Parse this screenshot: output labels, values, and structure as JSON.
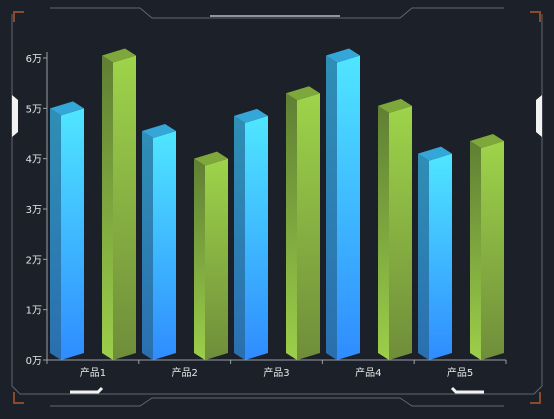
{
  "colors": {
    "background": "#1c2028",
    "frame": "#5f6672",
    "corner_accent": "#8b4a2b",
    "axis": "#9aa0a8",
    "tick_text": "#e6e8ea",
    "series_blue_top": "#4fe6ff",
    "series_blue_bottom": "#2f8cff",
    "series_green_top": "#9ed44a",
    "series_green_bottom": "#6f8d3a"
  },
  "chart_data": {
    "type": "bar",
    "categories": [
      "产品1",
      "产品2",
      "产品3",
      "产品4",
      "产品5"
    ],
    "series": [
      {
        "values": [
          50000,
          45500,
          48500,
          60500,
          41000
        ]
      },
      {
        "values": [
          60500,
          40000,
          53000,
          50500,
          43500
        ]
      }
    ],
    "ylim": [
      0,
      60000
    ],
    "yticks": [
      0,
      10000,
      20000,
      30000,
      40000,
      50000,
      60000
    ],
    "ytick_labels": [
      "0万",
      "1万",
      "2万",
      "3万",
      "4万",
      "5万",
      "6万"
    ],
    "style": "3d-bar",
    "grid": false,
    "legend": "none",
    "title": "",
    "xlabel": "",
    "ylabel": ""
  }
}
